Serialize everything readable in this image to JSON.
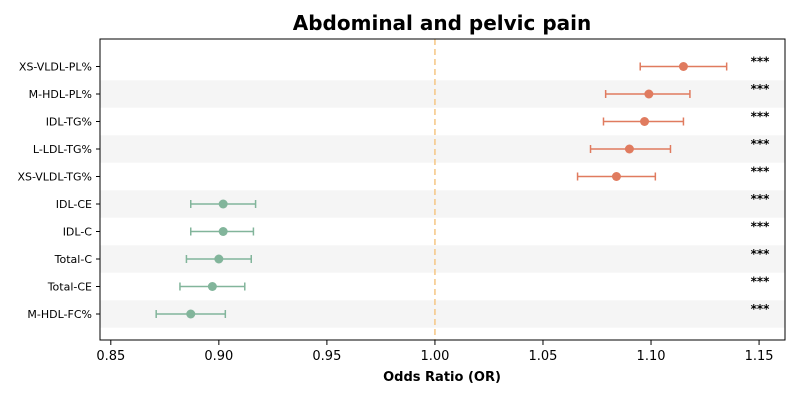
{
  "chart_data": {
    "type": "forest",
    "title": "Abdominal and pelvic pain",
    "xlabel": "Odds Ratio (OR)",
    "ylabel": "",
    "xlim": [
      0.845,
      1.162
    ],
    "xticks": [
      0.85,
      0.9,
      0.95,
      1.0,
      1.05,
      1.1,
      1.15
    ],
    "xtick_labels": [
      "0.85",
      "0.90",
      "0.95",
      "1.00",
      "1.05",
      "1.10",
      "1.15"
    ],
    "reference_line": 1.0,
    "grid": false,
    "colors": {
      "positive": "#e07b5f",
      "negative": "#82b59b",
      "reference": "#f5c684",
      "band": "#f5f5f5"
    },
    "rows": [
      {
        "label": "XS-VLDL-PL%",
        "or": 1.115,
        "lo": 1.095,
        "hi": 1.135,
        "sig": "***"
      },
      {
        "label": "M-HDL-PL%",
        "or": 1.099,
        "lo": 1.079,
        "hi": 1.118,
        "sig": "***"
      },
      {
        "label": "IDL-TG%",
        "or": 1.097,
        "lo": 1.078,
        "hi": 1.115,
        "sig": "***"
      },
      {
        "label": "L-LDL-TG%",
        "or": 1.09,
        "lo": 1.072,
        "hi": 1.109,
        "sig": "***"
      },
      {
        "label": "XS-VLDL-TG%",
        "or": 1.084,
        "lo": 1.066,
        "hi": 1.102,
        "sig": "***"
      },
      {
        "label": "IDL-CE",
        "or": 0.902,
        "lo": 0.887,
        "hi": 0.917,
        "sig": "***"
      },
      {
        "label": "IDL-C",
        "or": 0.902,
        "lo": 0.887,
        "hi": 0.916,
        "sig": "***"
      },
      {
        "label": "Total-C",
        "or": 0.9,
        "lo": 0.885,
        "hi": 0.915,
        "sig": "***"
      },
      {
        "label": "Total-CE",
        "or": 0.897,
        "lo": 0.882,
        "hi": 0.912,
        "sig": "***"
      },
      {
        "label": "M-HDL-FC%",
        "or": 0.887,
        "lo": 0.871,
        "hi": 0.903,
        "sig": "***"
      }
    ]
  }
}
